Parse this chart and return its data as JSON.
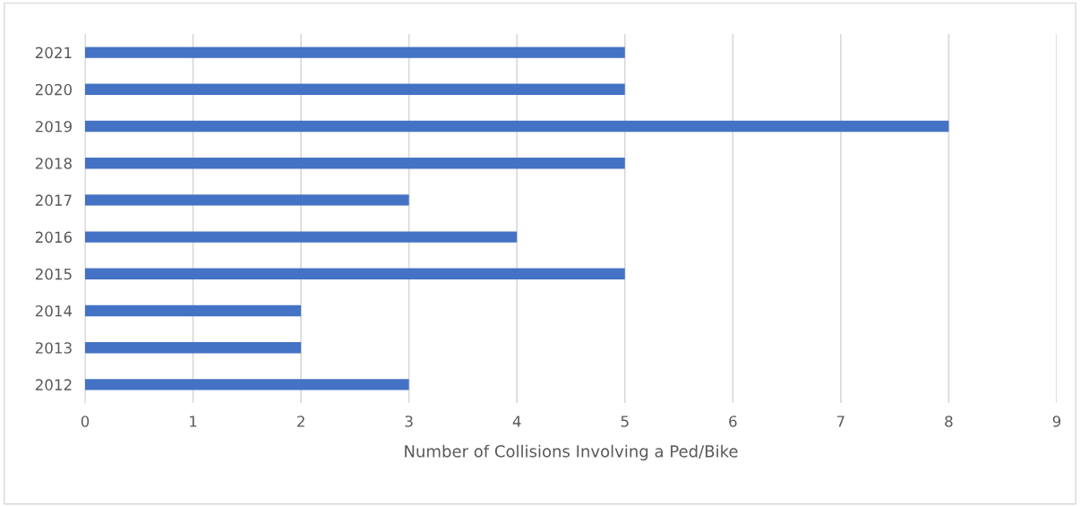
{
  "chart_data": {
    "type": "bar",
    "orientation": "horizontal",
    "xlabel": "Number of Collisions Involving a Ped/Bike",
    "categories": [
      "2021",
      "2020",
      "2019",
      "2018",
      "2017",
      "2016",
      "2015",
      "2014",
      "2013",
      "2012"
    ],
    "values": [
      5,
      5,
      8,
      5,
      3,
      4,
      5,
      2,
      2,
      3
    ],
    "color": "#4472c4",
    "xlim": [
      0,
      9
    ],
    "xticks": [
      0,
      1,
      2,
      3,
      4,
      5,
      6,
      7,
      8,
      9
    ],
    "grid": "x",
    "legend": false
  }
}
